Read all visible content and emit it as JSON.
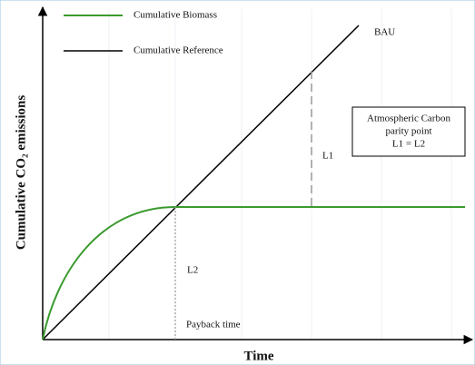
{
  "legend": {
    "items": [
      "Cumulative Biomass",
      "Cumulative Reference"
    ]
  },
  "labels": {
    "bau": "BAU",
    "l1": "L1",
    "l2": "L2",
    "payback": "Payback time"
  },
  "note_box": {
    "lines": [
      "Atmospheric Carbon",
      "parity point",
      "L1 = L2"
    ]
  },
  "axes": {
    "x_label": "Time",
    "y_label": "Cumulative CO₂ emissions"
  }
}
